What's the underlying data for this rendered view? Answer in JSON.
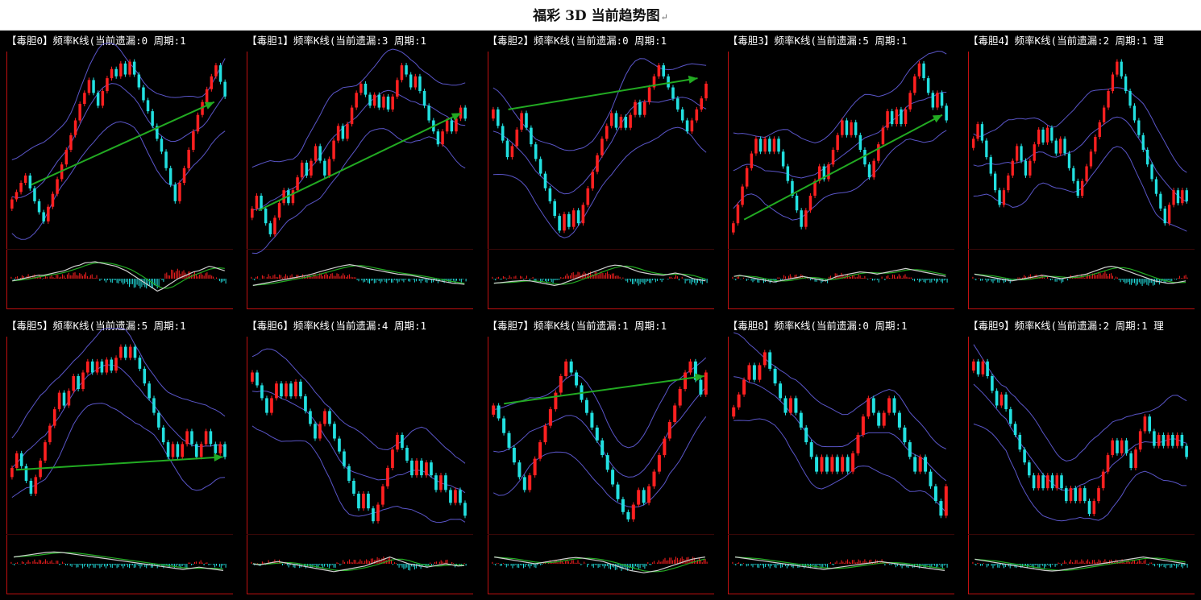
{
  "page_title": "福彩 3D 当前趋势图",
  "title_suffix_glyph": "↵",
  "colors": {
    "background": "#000000",
    "bull_candle": "#ff2020",
    "bear_candle": "#22e0e0",
    "band": "#5a55c8",
    "trend_arrow": "#22aa22",
    "macd_dif": "#d0d0d0",
    "macd_dea": "#22aa22",
    "frame": "#c01010"
  },
  "chart_data": [
    {
      "type": "candlestick",
      "title": "【毒胆0】频率K线(当前遗漏:0 周期:1",
      "close": [
        0.23,
        0.27,
        0.32,
        0.36,
        0.29,
        0.22,
        0.16,
        0.11,
        0.19,
        0.26,
        0.34,
        0.42,
        0.5,
        0.58,
        0.66,
        0.75,
        0.81,
        0.88,
        0.81,
        0.74,
        0.82,
        0.89,
        0.94,
        0.9,
        0.97,
        0.91,
        0.98,
        0.91,
        0.84,
        0.77,
        0.71,
        0.63,
        0.56,
        0.49,
        0.4,
        0.31,
        0.22,
        0.32,
        0.4,
        0.5,
        0.6,
        0.69,
        0.76,
        0.83,
        0.9,
        0.96,
        0.87,
        0.79
      ],
      "arrow": [
        [
          0.1,
          0.31
        ],
        [
          0.94,
          0.76
        ]
      ],
      "macd": [
        -0.1,
        -0.05,
        0,
        0.05,
        0.1,
        0.15,
        0.15,
        0.2,
        0.25,
        0.3,
        0.35,
        0.45,
        0.55,
        0.6,
        0.7,
        0.72,
        0.75,
        0.7,
        0.65,
        0.6,
        0.55,
        0.45,
        0.35,
        0.2,
        0.05,
        -0.1,
        -0.25,
        -0.4,
        -0.55,
        -0.45,
        -0.3,
        -0.15,
        0,
        0.1,
        0.2,
        0.3,
        0.35,
        0.45,
        0.55,
        0.5,
        0.42,
        0.35
      ]
    },
    {
      "type": "candlestick",
      "title": "【毒胆1】频率K线(当前遗漏:3 周期:1",
      "close": [
        0.18,
        0.25,
        0.18,
        0.1,
        0.04,
        0.13,
        0.21,
        0.28,
        0.21,
        0.28,
        0.35,
        0.43,
        0.36,
        0.44,
        0.52,
        0.44,
        0.36,
        0.45,
        0.55,
        0.63,
        0.56,
        0.64,
        0.73,
        0.81,
        0.86,
        0.8,
        0.74,
        0.8,
        0.73,
        0.79,
        0.72,
        0.79,
        0.88,
        0.96,
        0.91,
        0.84,
        0.9,
        0.82,
        0.74,
        0.66,
        0.6,
        0.53,
        0.6,
        0.66,
        0.6,
        0.67,
        0.73,
        0.67
      ],
      "arrow": [
        [
          0.04,
          0.17
        ],
        [
          0.97,
          0.7
        ]
      ],
      "macd": [
        -0.3,
        -0.25,
        -0.2,
        -0.15,
        -0.1,
        -0.05,
        0,
        0.05,
        0.1,
        0.15,
        0.22,
        0.3,
        0.38,
        0.45,
        0.52,
        0.58,
        0.62,
        0.58,
        0.52,
        0.45,
        0.4,
        0.35,
        0.3,
        0.25,
        0.2,
        0.18,
        0.15,
        0.1,
        0.05,
        0,
        -0.05,
        -0.1,
        -0.15,
        -0.2,
        -0.22,
        -0.25
      ]
    },
    {
      "type": "candlestick",
      "title": "【毒胆2】频率K线(当前遗漏:0 周期:1",
      "close": [
        0.72,
        0.63,
        0.55,
        0.46,
        0.52,
        0.61,
        0.7,
        0.62,
        0.53,
        0.45,
        0.37,
        0.29,
        0.22,
        0.14,
        0.06,
        0.15,
        0.08,
        0.17,
        0.1,
        0.2,
        0.29,
        0.38,
        0.47,
        0.56,
        0.63,
        0.7,
        0.62,
        0.68,
        0.62,
        0.69,
        0.76,
        0.69,
        0.76,
        0.84,
        0.9,
        0.96,
        0.9,
        0.84,
        0.78,
        0.72,
        0.66,
        0.6,
        0.66,
        0.72,
        0.78,
        0.86
      ],
      "arrow": [
        [
          0.08,
          0.72
        ],
        [
          0.95,
          0.89
        ]
      ],
      "macd": [
        -0.2,
        -0.18,
        -0.15,
        -0.12,
        -0.1,
        -0.08,
        -0.1,
        -0.15,
        -0.2,
        -0.25,
        -0.3,
        -0.25,
        -0.15,
        -0.05,
        0.05,
        0.15,
        0.25,
        0.35,
        0.45,
        0.55,
        0.6,
        0.58,
        0.5,
        0.4,
        0.3,
        0.25,
        0.2,
        0.18,
        0.15,
        0.2,
        0.25,
        0.2,
        0.1,
        0,
        -0.05,
        -0.1
      ]
    },
    {
      "type": "candlestick",
      "title": "【毒胆3】频率K线(当前遗漏:5 周期:1",
      "close": [
        0.1,
        0.2,
        0.3,
        0.4,
        0.48,
        0.56,
        0.49,
        0.56,
        0.49,
        0.56,
        0.49,
        0.41,
        0.33,
        0.25,
        0.17,
        0.08,
        0.17,
        0.25,
        0.33,
        0.41,
        0.34,
        0.42,
        0.5,
        0.58,
        0.66,
        0.58,
        0.65,
        0.58,
        0.5,
        0.42,
        0.35,
        0.44,
        0.53,
        0.62,
        0.71,
        0.64,
        0.72,
        0.64,
        0.72,
        0.81,
        0.9,
        0.97,
        0.89,
        0.81,
        0.73,
        0.81,
        0.74,
        0.66
      ],
      "arrow": [
        [
          0.06,
          0.12
        ],
        [
          0.97,
          0.69
        ]
      ],
      "macd": [
        0.1,
        0.15,
        0.1,
        0.05,
        0,
        -0.05,
        -0.1,
        -0.15,
        -0.1,
        -0.05,
        0,
        0.05,
        0.1,
        0.05,
        0,
        -0.05,
        -0.1,
        0,
        0.1,
        0.15,
        0.2,
        0.25,
        0.3,
        0.28,
        0.25,
        0.2,
        0.25,
        0.3,
        0.35,
        0.4,
        0.45,
        0.4,
        0.35,
        0.3,
        0.25,
        0.2,
        0.15,
        0.1
      ]
    },
    {
      "type": "candlestick",
      "title": "【毒胆4】频率K线(当前遗漏:2 周期:1 理",
      "close": [
        0.56,
        0.64,
        0.55,
        0.46,
        0.37,
        0.28,
        0.2,
        0.28,
        0.36,
        0.44,
        0.52,
        0.44,
        0.36,
        0.44,
        0.53,
        0.61,
        0.54,
        0.62,
        0.55,
        0.48,
        0.56,
        0.48,
        0.4,
        0.33,
        0.25,
        0.33,
        0.41,
        0.49,
        0.57,
        0.65,
        0.73,
        0.82,
        0.91,
        0.98,
        0.9,
        0.82,
        0.74,
        0.66,
        0.58,
        0.5,
        0.42,
        0.34,
        0.26,
        0.18,
        0.1,
        0.2,
        0.28,
        0.21,
        0.28,
        0.22
      ],
      "arrow": null,
      "macd": [
        0.2,
        0.15,
        0.1,
        0.05,
        0,
        -0.05,
        -0.1,
        -0.05,
        0,
        0.05,
        0.1,
        0.15,
        0.1,
        0.05,
        0,
        0.05,
        0.1,
        0.15,
        0.2,
        0.3,
        0.4,
        0.5,
        0.55,
        0.5,
        0.4,
        0.3,
        0.2,
        0.1,
        0,
        -0.1,
        -0.15,
        -0.2,
        -0.2,
        -0.15,
        -0.1
      ]
    },
    {
      "type": "candlestick",
      "title": "【毒胆5】频率K线(当前遗漏:5 周期:1",
      "close": [
        0.32,
        0.4,
        0.33,
        0.25,
        0.18,
        0.27,
        0.36,
        0.46,
        0.55,
        0.64,
        0.73,
        0.66,
        0.74,
        0.82,
        0.75,
        0.84,
        0.9,
        0.84,
        0.9,
        0.84,
        0.91,
        0.85,
        0.92,
        0.98,
        0.92,
        0.98,
        0.92,
        0.86,
        0.78,
        0.7,
        0.62,
        0.54,
        0.46,
        0.38,
        0.45,
        0.38,
        0.45,
        0.52,
        0.45,
        0.38,
        0.45,
        0.52,
        0.45,
        0.4,
        0.45,
        0.38
      ],
      "arrow": [
        [
          0.03,
          0.31
        ],
        [
          0.98,
          0.38
        ]
      ],
      "macd": [
        0.3,
        0.35,
        0.4,
        0.45,
        0.5,
        0.52,
        0.5,
        0.45,
        0.4,
        0.35,
        0.3,
        0.25,
        0.2,
        0.15,
        0.1,
        0.05,
        0,
        -0.05,
        -0.1,
        -0.15,
        -0.2,
        -0.25,
        -0.2,
        -0.15,
        -0.2,
        -0.25,
        -0.3
      ]
    },
    {
      "type": "candlestick",
      "title": "【毒胆6】频率K线(当前遗漏:4 周期:1",
      "close": [
        0.84,
        0.77,
        0.7,
        0.62,
        0.7,
        0.78,
        0.71,
        0.78,
        0.71,
        0.79,
        0.71,
        0.63,
        0.56,
        0.48,
        0.56,
        0.63,
        0.56,
        0.48,
        0.41,
        0.33,
        0.25,
        0.18,
        0.1,
        0.18,
        0.1,
        0.03,
        0.12,
        0.22,
        0.32,
        0.42,
        0.5,
        0.43,
        0.36,
        0.28,
        0.36,
        0.28,
        0.35,
        0.28,
        0.2,
        0.28,
        0.2,
        0.13,
        0.2,
        0.13,
        0.06
      ],
      "arrow": null,
      "macd": [
        0,
        -0.05,
        0,
        0.05,
        0.1,
        0.05,
        0,
        -0.05,
        -0.1,
        -0.15,
        -0.2,
        -0.25,
        -0.3,
        -0.35,
        -0.3,
        -0.25,
        -0.2,
        -0.15,
        -0.1,
        0,
        0.1,
        0.2,
        0.3,
        0.2,
        0.1,
        0,
        -0.05,
        -0.1,
        -0.15,
        -0.1,
        -0.05,
        0,
        -0.05,
        -0.1,
        -0.08
      ]
    },
    {
      "type": "candlestick",
      "title": "【毒胆7】频率K线(当前遗漏:1 周期:1",
      "close": [
        0.66,
        0.59,
        0.51,
        0.43,
        0.35,
        0.27,
        0.2,
        0.28,
        0.37,
        0.46,
        0.55,
        0.64,
        0.73,
        0.82,
        0.9,
        0.84,
        0.77,
        0.69,
        0.62,
        0.54,
        0.47,
        0.39,
        0.31,
        0.23,
        0.15,
        0.08,
        0.04,
        0.12,
        0.2,
        0.13,
        0.22,
        0.3,
        0.39,
        0.48,
        0.57,
        0.66,
        0.75,
        0.84,
        0.9,
        0.8,
        0.72,
        0.84
      ],
      "arrow": [
        [
          0.06,
          0.67
        ],
        [
          0.98,
          0.82
        ]
      ],
      "macd": [
        0.3,
        0.25,
        0.2,
        0.15,
        0.1,
        0.05,
        0,
        0.05,
        0.1,
        0.15,
        0.2,
        0.25,
        0.28,
        0.25,
        0.2,
        0.15,
        0.1,
        0,
        -0.1,
        -0.2,
        -0.3,
        -0.35,
        -0.4,
        -0.35,
        -0.3,
        -0.2,
        -0.1,
        0,
        0.1,
        0.2,
        0.25,
        0.3
      ]
    },
    {
      "type": "candlestick",
      "title": "【毒胆8】频率K线(当前遗漏:0 周期:1",
      "close": [
        0.65,
        0.72,
        0.8,
        0.88,
        0.8,
        0.88,
        0.95,
        0.86,
        0.78,
        0.7,
        0.62,
        0.7,
        0.62,
        0.54,
        0.46,
        0.38,
        0.3,
        0.38,
        0.3,
        0.38,
        0.3,
        0.38,
        0.3,
        0.4,
        0.5,
        0.6,
        0.7,
        0.62,
        0.55,
        0.62,
        0.7,
        0.62,
        0.54,
        0.46,
        0.38,
        0.3,
        0.38,
        0.3,
        0.22,
        0.14,
        0.06,
        0.22
      ],
      "arrow": null,
      "macd": [
        0.3,
        0.25,
        0.2,
        0.15,
        0.1,
        0.05,
        0,
        -0.05,
        -0.1,
        -0.15,
        -0.2,
        -0.25,
        -0.2,
        -0.15,
        -0.1,
        -0.05,
        0,
        0.05,
        0.1,
        0.05,
        0,
        -0.05,
        -0.1,
        -0.15,
        -0.2,
        -0.25,
        -0.3
      ]
    },
    {
      "type": "candlestick",
      "title": "【毒胆9】频率K线(当前遗漏:2 周期:1 理",
      "close": [
        0.9,
        0.83,
        0.9,
        0.82,
        0.74,
        0.66,
        0.72,
        0.64,
        0.56,
        0.5,
        0.42,
        0.35,
        0.28,
        0.21,
        0.28,
        0.21,
        0.28,
        0.21,
        0.28,
        0.21,
        0.14,
        0.21,
        0.14,
        0.21,
        0.14,
        0.07,
        0.14,
        0.21,
        0.3,
        0.39,
        0.47,
        0.4,
        0.47,
        0.4,
        0.32,
        0.42,
        0.52,
        0.6,
        0.52,
        0.44,
        0.5,
        0.44,
        0.5,
        0.44,
        0.5,
        0.44,
        0.38
      ],
      "arrow": null,
      "macd": [
        0.2,
        0.15,
        0.1,
        0.05,
        0,
        -0.05,
        -0.1,
        -0.15,
        -0.2,
        -0.25,
        -0.3,
        -0.32,
        -0.3,
        -0.25,
        -0.2,
        -0.15,
        -0.1,
        -0.05,
        0,
        0.05,
        0.1,
        0.15,
        0.2,
        0.25,
        0.3,
        0.25,
        0.2,
        0.15,
        0.1,
        0.05,
        0
      ]
    }
  ]
}
